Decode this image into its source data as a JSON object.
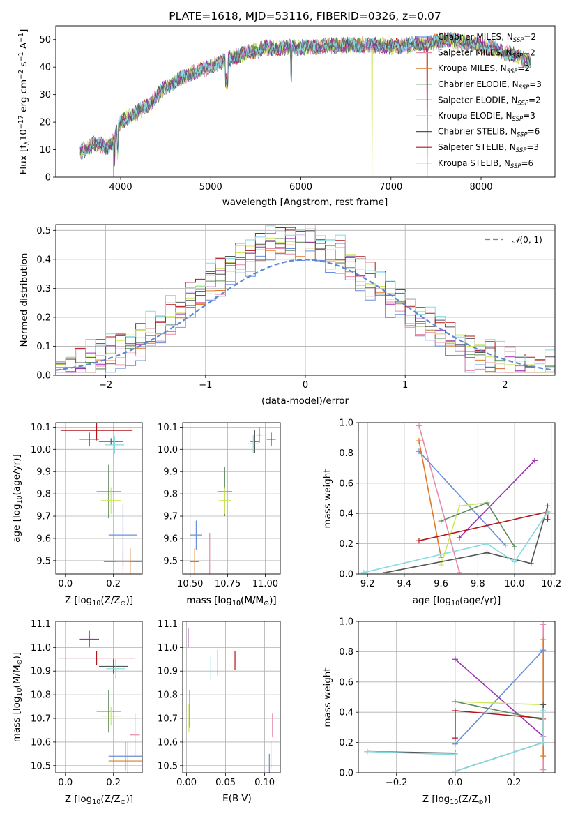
{
  "colors": {
    "Chabrier MILES": "#6a8fd8",
    "Salpeter MILES": "#e58aaa",
    "Kroupa MILES": "#de7a27",
    "Chabrier ELODIE": "#5d8a5f",
    "Salpeter ELODIE": "#9b32b0",
    "Kroupa ELODIE": "#cde85a",
    "Chabrier STELIB": "#555555",
    "Salpeter STELIB": "#b4161a",
    "Kroupa STELIB": "#85dbe0",
    "normal": "#5c88d6"
  },
  "chart_data": [
    {
      "id": "spectrum",
      "type": "line",
      "title": "PLATE=1618, MJD=53116, FIBERID=0326, z=0.07",
      "xlabel": "wavelength [Angstrom, rest frame]",
      "ylabel_parts": [
        "Flux [f",
        "λ",
        "10",
        "−17",
        " erg cm",
        "−2",
        " s",
        "−1",
        " A",
        "−1",
        "]"
      ],
      "xlim": [
        3280,
        8820
      ],
      "ylim": [
        0,
        55
      ],
      "xticks": [
        4000,
        5000,
        6000,
        7000,
        8000
      ],
      "yticks": [
        0,
        10,
        20,
        30,
        40,
        50
      ],
      "legend_position": "top-right",
      "legend": [
        {
          "name": "Chabrier MILES",
          "label": "Chabrier MILES, N",
          "sub": "SSP",
          "tail": "=2"
        },
        {
          "name": "Salpeter MILES",
          "label": "Salpeter MILES, N",
          "sub": "SSP",
          "tail": "=2"
        },
        {
          "name": "Kroupa MILES",
          "label": "Kroupa MILES, N",
          "sub": "SSP",
          "tail": "=2"
        },
        {
          "name": "Chabrier ELODIE",
          "label": "Chabrier ELODIE, N",
          "sub": "SSP",
          "tail": "=3"
        },
        {
          "name": "Salpeter ELODIE",
          "label": "Salpeter ELODIE, N",
          "sub": "SSP",
          "tail": "=2"
        },
        {
          "name": "Kroupa ELODIE",
          "label": "Kroupa ELODIE, N",
          "sub": "SSP",
          "tail": "=3"
        },
        {
          "name": "Chabrier STELIB",
          "label": "Chabrier STELIB, N",
          "sub": "SSP",
          "tail": "=6"
        },
        {
          "name": "Salpeter STELIB",
          "label": "Salpeter STELIB, N",
          "sub": "SSP",
          "tail": "=3"
        },
        {
          "name": "Kroupa STELIB",
          "label": "Kroupa STELIB, N",
          "sub": "SSP",
          "tail": "=6"
        }
      ],
      "continuum_x": [
        3550,
        3700,
        3850,
        3920,
        4000,
        4150,
        4300,
        4500,
        4800,
        5000,
        5200,
        5400,
        5600,
        5800,
        6000,
        6200,
        6400,
        6600,
        6800,
        7000,
        7200,
        7400,
        7600,
        7800,
        8000,
        8200,
        8400,
        8550
      ],
      "continuum_y": [
        9,
        12,
        11,
        13,
        20,
        23,
        26,
        33,
        38,
        40,
        43,
        45,
        47,
        47,
        47,
        47.5,
        48,
        48,
        48,
        47.5,
        48,
        48.5,
        50,
        49,
        48,
        46,
        44,
        42
      ],
      "dropouts": [
        {
          "series": "Kroupa MILES",
          "x": 3920
        },
        {
          "series": "Kroupa ELODIE",
          "x": 6790
        },
        {
          "series": "Salpeter STELIB",
          "x": 7400
        }
      ]
    },
    {
      "id": "residuals",
      "type": "histogram",
      "xlabel": "(data-model)/error",
      "ylabel": "Normed distribution",
      "xlim": [
        -2.5,
        2.5
      ],
      "ylim": [
        0,
        0.52
      ],
      "xticks": [
        -2,
        -1,
        0,
        1,
        2
      ],
      "yticks": [
        0.0,
        0.1,
        0.2,
        0.3,
        0.4,
        0.5
      ],
      "bin_width": 0.1,
      "legend_position": "top-right",
      "reference_curve": {
        "label_parts": [
          "𝒩",
          "(0, 1)"
        ],
        "mean": 0,
        "sigma": 1
      }
    },
    {
      "id": "age-vs-Z",
      "type": "scatter",
      "xlabel_parts": [
        "Z [log",
        "10",
        "(Z/Z",
        "⊙",
        ")]"
      ],
      "ylabel_parts": [
        "age  [log",
        "10",
        "(age/yr)]"
      ],
      "xlim": [
        -0.04,
        0.32
      ],
      "ylim": [
        9.44,
        10.12
      ],
      "xticks": [
        0.0,
        0.2
      ],
      "yticks": [
        9.5,
        9.6,
        9.7,
        9.8,
        9.9,
        10.0,
        10.1
      ],
      "points": [
        {
          "series": "Salpeter STELIB",
          "x": 0.13,
          "y": 10.085,
          "xerr": 0.15,
          "yerr": 0.045
        },
        {
          "series": "Salpeter ELODIE",
          "x": 0.1,
          "y": 10.045,
          "xerr": 0.04,
          "yerr": 0.03
        },
        {
          "series": "Chabrier STELIB",
          "x": 0.19,
          "y": 10.035,
          "xerr": 0.05,
          "yerr": 0.015
        },
        {
          "series": "Kroupa STELIB",
          "x": 0.205,
          "y": 10.02,
          "xerr": 0.04,
          "yerr": 0.04
        },
        {
          "series": "Chabrier ELODIE",
          "x": 0.18,
          "y": 9.81,
          "xerr": 0.05,
          "yerr": 0.12
        },
        {
          "series": "Kroupa ELODIE",
          "x": 0.19,
          "y": 9.77,
          "xerr": 0.04,
          "yerr": 0.06
        },
        {
          "series": "Chabrier MILES",
          "x": 0.24,
          "y": 9.615,
          "xerr": 0.06,
          "yerr": 0.14
        },
        {
          "series": "Kroupa MILES",
          "x": 0.27,
          "y": 9.495,
          "xerr": 0.11,
          "yerr": 0.06
        },
        {
          "series": "Salpeter MILES",
          "x": 0.24,
          "y": 9.495,
          "xerr": 0.03,
          "yerr": 0.05
        }
      ]
    },
    {
      "id": "age-vs-mass",
      "type": "scatter",
      "xlabel_parts": [
        "mass [log",
        "10",
        "(M/M",
        "⊙",
        ")]"
      ],
      "xlim": [
        10.45,
        11.1
      ],
      "ylim": [
        9.44,
        10.12
      ],
      "xticks": [
        10.5,
        10.75,
        11.0
      ],
      "yticks": [
        9.5,
        9.6,
        9.7,
        9.8,
        9.9,
        10.0,
        10.1
      ],
      "points": [
        {
          "series": "Salpeter STELIB",
          "x": 10.96,
          "y": 10.065,
          "xerr": 0.02,
          "yerr": 0.035
        },
        {
          "series": "Salpeter ELODIE",
          "x": 11.04,
          "y": 10.045,
          "xerr": 0.03,
          "yerr": 0.03
        },
        {
          "series": "Chabrier STELIB",
          "x": 10.93,
          "y": 10.035,
          "xerr": 0.03,
          "yerr": 0.05
        },
        {
          "series": "Kroupa STELIB",
          "x": 10.92,
          "y": 10.025,
          "xerr": 0.04,
          "yerr": 0.04
        },
        {
          "series": "Chabrier ELODIE",
          "x": 10.73,
          "y": 9.81,
          "xerr": 0.05,
          "yerr": 0.11
        },
        {
          "series": "Kroupa ELODIE",
          "x": 10.73,
          "y": 9.77,
          "xerr": 0.04,
          "yerr": 0.06
        },
        {
          "series": "Chabrier MILES",
          "x": 10.54,
          "y": 9.615,
          "xerr": 0.04,
          "yerr": 0.065
        },
        {
          "series": "Kroupa MILES",
          "x": 10.53,
          "y": 9.495,
          "xerr": 0.03,
          "yerr": 0.06
        },
        {
          "series": "Salpeter MILES",
          "x": 10.63,
          "y": 9.525,
          "xerr": 0.0,
          "yerr": 0.1
        }
      ]
    },
    {
      "id": "weight-vs-age",
      "type": "line",
      "xlabel_parts": [
        "age  [log",
        "10",
        "(age/yr)]"
      ],
      "ylabel": "mass weight",
      "xlim": [
        9.15,
        10.22
      ],
      "ylim": [
        0,
        1
      ],
      "xticks": [
        9.2,
        9.4,
        9.6,
        9.8,
        10.0,
        10.2
      ],
      "yticks": [
        0.0,
        0.2,
        0.4,
        0.6,
        0.8,
        1.0
      ],
      "series": [
        {
          "name": "Salpeter MILES",
          "x": [
            9.48,
            9.7
          ],
          "y": [
            0.98,
            0.01
          ]
        },
        {
          "name": "Kroupa MILES",
          "x": [
            9.48,
            9.6
          ],
          "y": [
            0.88,
            0.11
          ]
        },
        {
          "name": "Chabrier MILES",
          "x": [
            9.48,
            9.95
          ],
          "y": [
            0.81,
            0.19
          ]
        },
        {
          "name": "Salpeter ELODIE",
          "x": [
            9.7,
            10.11
          ],
          "y": [
            0.24,
            0.75
          ]
        },
        {
          "name": "Kroupa ELODIE",
          "x": [
            9.6,
            9.7,
            9.85
          ],
          "y": [
            0.06,
            0.45,
            0.47
          ]
        },
        {
          "name": "Chabrier ELODIE",
          "x": [
            9.6,
            9.85,
            10.0
          ],
          "y": [
            0.35,
            0.47,
            0.18
          ]
        },
        {
          "name": "Salpeter STELIB",
          "x": [
            9.48,
            10.18,
            10.18
          ],
          "y": [
            0.22,
            0.41,
            0.36
          ]
        },
        {
          "name": "Chabrier STELIB",
          "x": [
            9.3,
            9.85,
            10.09,
            10.18
          ],
          "y": [
            0.01,
            0.14,
            0.07,
            0.45
          ]
        },
        {
          "name": "Kroupa STELIB",
          "x": [
            9.18,
            9.85,
            10.0,
            10.18
          ],
          "y": [
            0.01,
            0.2,
            0.08,
            0.41
          ]
        }
      ]
    },
    {
      "id": "mass-vs-Z",
      "type": "scatter",
      "xlabel_parts": [
        "Z [log",
        "10",
        "(Z/Z",
        "⊙",
        ")]"
      ],
      "ylabel_parts": [
        "mass [log",
        "10",
        "(M/M",
        "⊙",
        ")]"
      ],
      "xlim": [
        -0.04,
        0.32
      ],
      "ylim": [
        10.47,
        11.11
      ],
      "xticks": [
        0.0,
        0.2
      ],
      "yticks": [
        10.5,
        10.6,
        10.7,
        10.8,
        10.9,
        11.0,
        11.1
      ],
      "points": [
        {
          "series": "Salpeter ELODIE",
          "x": 0.1,
          "y": 11.035,
          "xerr": 0.04,
          "yerr": 0.035
        },
        {
          "series": "Salpeter STELIB",
          "x": 0.13,
          "y": 10.955,
          "xerr": 0.16,
          "yerr": 0.03
        },
        {
          "series": "Chabrier STELIB",
          "x": 0.2,
          "y": 10.92,
          "xerr": 0.06,
          "yerr": 0.03
        },
        {
          "series": "Kroupa STELIB",
          "x": 0.21,
          "y": 10.91,
          "xerr": 0.04,
          "yerr": 0.04
        },
        {
          "series": "Chabrier ELODIE",
          "x": 0.18,
          "y": 10.73,
          "xerr": 0.05,
          "yerr": 0.09
        },
        {
          "series": "Kroupa ELODIE",
          "x": 0.19,
          "y": 10.71,
          "xerr": 0.04,
          "yerr": 0.04
        },
        {
          "series": "Salpeter MILES",
          "x": 0.29,
          "y": 10.63,
          "xerr": 0.02,
          "yerr": 0.09
        },
        {
          "series": "Chabrier MILES",
          "x": 0.25,
          "y": 10.54,
          "xerr": 0.07,
          "yerr": 0.06
        },
        {
          "series": "Kroupa MILES",
          "x": 0.26,
          "y": 10.52,
          "xerr": 0.08,
          "yerr": 0.08
        }
      ]
    },
    {
      "id": "mass-vs-EBV",
      "type": "scatter",
      "xlabel": "E(B-V)",
      "xlim": [
        -0.005,
        0.12
      ],
      "ylim": [
        10.47,
        11.11
      ],
      "xticks": [
        0.0,
        0.05,
        0.1
      ],
      "yticks": [
        10.5,
        10.6,
        10.7,
        10.8,
        10.9,
        11.0,
        11.1
      ],
      "points": [
        {
          "series": "Salpeter ELODIE",
          "x": 0.002,
          "y": 11.04,
          "xerr": 0,
          "yerr": 0.04
        },
        {
          "series": "Chabrier STELIB",
          "x": 0.04,
          "y": 10.935,
          "xerr": 0,
          "yerr": 0.055
        },
        {
          "series": "Salpeter STELIB",
          "x": 0.062,
          "y": 10.945,
          "xerr": 0,
          "yerr": 0.04
        },
        {
          "series": "Kroupa STELIB",
          "x": 0.031,
          "y": 10.91,
          "xerr": 0,
          "yerr": 0.05
        },
        {
          "series": "Chabrier ELODIE",
          "x": 0.004,
          "y": 10.74,
          "xerr": 0,
          "yerr": 0.08
        },
        {
          "series": "Kroupa ELODIE",
          "x": 0.003,
          "y": 10.7,
          "xerr": 0,
          "yerr": 0.06
        },
        {
          "series": "Salpeter MILES",
          "x": 0.11,
          "y": 10.67,
          "xerr": 0,
          "yerr": 0.05
        },
        {
          "series": "Kroupa MILES",
          "x": 0.108,
          "y": 10.545,
          "xerr": 0,
          "yerr": 0.06
        },
        {
          "series": "Chabrier MILES",
          "x": 0.106,
          "y": 10.51,
          "xerr": 0,
          "yerr": 0.04
        }
      ]
    },
    {
      "id": "weight-vs-Z",
      "type": "line",
      "xlabel_parts": [
        "Z [log",
        "10",
        "(Z/Z",
        "⊙",
        ")]"
      ],
      "ylabel": "mass weight",
      "xlim": [
        -0.33,
        0.34
      ],
      "ylim": [
        0,
        1
      ],
      "xticks": [
        -0.2,
        0.0,
        0.2
      ],
      "yticks": [
        0.0,
        0.2,
        0.4,
        0.6,
        0.8,
        1.0
      ],
      "series": [
        {
          "name": "Salpeter MILES",
          "x": [
            0.3,
            0.3
          ],
          "y": [
            0.02,
            0.98
          ]
        },
        {
          "name": "Kroupa MILES",
          "x": [
            0.3,
            0.3
          ],
          "y": [
            0.11,
            0.88
          ]
        },
        {
          "name": "Chabrier MILES",
          "x": [
            0.0,
            0.3
          ],
          "y": [
            0.19,
            0.81
          ]
        },
        {
          "name": "Salpeter ELODIE",
          "x": [
            0.0,
            0.3
          ],
          "y": [
            0.75,
            0.24
          ]
        },
        {
          "name": "Kroupa ELODIE",
          "x": [
            0.0,
            0.3
          ],
          "y": [
            0.47,
            0.45
          ]
        },
        {
          "name": "Chabrier ELODIE",
          "x": [
            0.0,
            0.3
          ],
          "y": [
            0.47,
            0.35
          ]
        },
        {
          "name": "Salpeter STELIB",
          "x": [
            0.0,
            0.0,
            0.3
          ],
          "y": [
            0.23,
            0.41,
            0.36
          ]
        },
        {
          "name": "Chabrier STELIB",
          "x": [
            -0.3,
            0.0,
            0.0,
            0.3,
            0.3
          ],
          "y": [
            0.14,
            0.13,
            0.01,
            0.2,
            0.45
          ]
        },
        {
          "name": "Kroupa STELIB",
          "x": [
            -0.3,
            0.0,
            0.0,
            0.3,
            0.3
          ],
          "y": [
            0.14,
            0.12,
            0.01,
            0.2,
            0.41
          ]
        }
      ]
    }
  ]
}
